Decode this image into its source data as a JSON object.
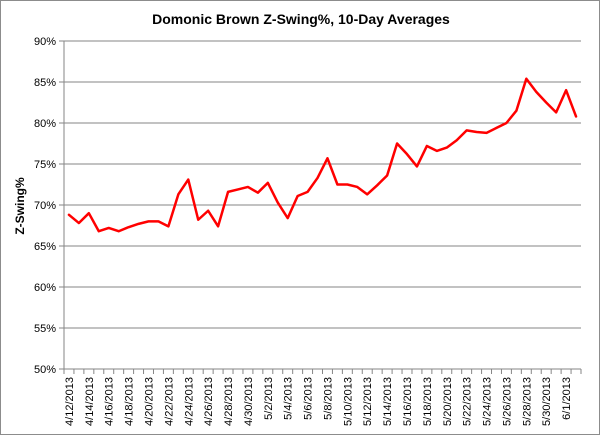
{
  "chart_data": {
    "type": "line",
    "title": "Domonic Brown Z-Swing%, 10-Day Averages",
    "xlabel": "",
    "ylabel": "Z-Swing%",
    "ylim": [
      50,
      90
    ],
    "ytick_values": [
      50,
      55,
      60,
      65,
      70,
      75,
      80,
      85,
      90
    ],
    "ytick_labels": [
      "50%",
      "55%",
      "60%",
      "65%",
      "70%",
      "75%",
      "80%",
      "85%",
      "90%"
    ],
    "grid": "horizontal",
    "legend": "none",
    "line_color": "#ff0000",
    "grid_color": "#868686",
    "xtick_labels": [
      "4/12/2013",
      "4/14/2013",
      "4/16/2013",
      "4/18/2013",
      "4/20/2013",
      "4/22/2013",
      "4/24/2013",
      "4/26/2013",
      "4/28/2013",
      "4/30/2013",
      "5/2/2013",
      "5/4/2013",
      "5/6/2013",
      "5/8/2013",
      "5/10/2013",
      "5/12/2013",
      "5/14/2013",
      "5/16/2013",
      "5/18/2013",
      "5/20/2013",
      "5/22/2013",
      "5/24/2013",
      "5/26/2013",
      "5/28/2013",
      "5/30/2013",
      "6/1/2013"
    ],
    "x": [
      "4/12/2013",
      "4/13/2013",
      "4/14/2013",
      "4/15/2013",
      "4/16/2013",
      "4/17/2013",
      "4/18/2013",
      "4/19/2013",
      "4/20/2013",
      "4/21/2013",
      "4/22/2013",
      "4/23/2013",
      "4/24/2013",
      "4/25/2013",
      "4/26/2013",
      "4/27/2013",
      "4/28/2013",
      "4/29/2013",
      "4/30/2013",
      "5/1/2013",
      "5/2/2013",
      "5/3/2013",
      "5/4/2013",
      "5/5/2013",
      "5/6/2013",
      "5/7/2013",
      "5/8/2013",
      "5/9/2013",
      "5/10/2013",
      "5/11/2013",
      "5/12/2013",
      "5/13/2013",
      "5/14/2013",
      "5/15/2013",
      "5/16/2013",
      "5/17/2013",
      "5/18/2013",
      "5/19/2013",
      "5/20/2013",
      "5/21/2013",
      "5/22/2013",
      "5/23/2013",
      "5/24/2013",
      "5/25/2013",
      "5/26/2013",
      "5/27/2013",
      "5/28/2013",
      "5/29/2013",
      "5/30/2013",
      "5/31/2013",
      "6/1/2013",
      "6/2/2013"
    ],
    "values": [
      68.8,
      67.8,
      69.0,
      66.8,
      67.2,
      66.8,
      67.3,
      67.7,
      68.0,
      68.0,
      67.4,
      71.3,
      73.1,
      68.2,
      69.3,
      67.4,
      71.6,
      71.9,
      72.2,
      71.5,
      72.7,
      70.3,
      68.4,
      71.1,
      71.6,
      73.3,
      75.7,
      72.5,
      72.5,
      72.2,
      71.3,
      72.4,
      73.6,
      77.5,
      76.2,
      74.7,
      77.2,
      76.6,
      77.0,
      77.9,
      79.1,
      78.9,
      78.8,
      79.4,
      80.0,
      81.5,
      85.4,
      83.8,
      82.5,
      81.3,
      84.0,
      80.8
    ]
  }
}
